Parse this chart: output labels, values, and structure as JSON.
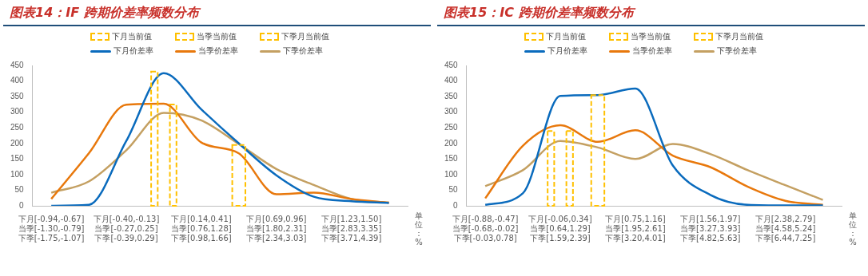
{
  "chart_data": [
    {
      "type": "line",
      "title": "图表14：IF 跨期价差率频数分布",
      "xlabel": "单位：%",
      "legend": "top",
      "grid": false,
      "ylim": [
        0,
        450
      ],
      "yticks": [
        0,
        50,
        100,
        150,
        200,
        250,
        300,
        350,
        400,
        450
      ],
      "categories": [
        "下月[-0.94,-0.67]\n当季[-1.30,-0.79]\n下季[-1.75,-1.07]",
        null,
        "下月[-0.40,-0.13]\n当季[-0.27,0.25]\n下季[-0.39,0.29]",
        null,
        "下月[0.14,0.41]\n当季[0.76,1.28]\n下季[0.98,1.66]",
        null,
        "下月[0.69,0.96]\n当季[1.80,2.31]\n下季[2.34,3.03]",
        null,
        "下月[1.23,1.50]\n当季[2.83,3.35]\n下季[3.71,4.39]",
        null
      ],
      "series": [
        {
          "type": "bar",
          "name": "下月当前值",
          "color": "#ffc000",
          "values": [
            null,
            null,
            null,
            430,
            null,
            null,
            null,
            null,
            null,
            null
          ]
        },
        {
          "type": "bar",
          "name": "当季当前值",
          "color": "#ffc000",
          "values": [
            null,
            null,
            null,
            325,
            null,
            null,
            null,
            null,
            null,
            null
          ]
        },
        {
          "type": "bar",
          "name": "下季月当前值",
          "color": "#ffc000",
          "values": [
            null,
            null,
            null,
            null,
            null,
            195,
            null,
            null,
            null,
            null
          ]
        },
        {
          "type": "line",
          "name": "下月价差率",
          "color": "#0a6bbd",
          "values": [
            0,
            3,
            208,
            425,
            309,
            200,
            98,
            29,
            15,
            9
          ]
        },
        {
          "type": "line",
          "name": "当季价差率",
          "color": "#e8780c",
          "values": [
            22,
            168,
            324,
            327,
            203,
            168,
            37,
            42,
            22,
            10
          ]
        },
        {
          "type": "line",
          "name": "下季价差率",
          "color": "#c4a062",
          "values": [
            42,
            78,
            178,
            298,
            274,
            198,
            118,
            67,
            22,
            10
          ]
        }
      ]
    },
    {
      "type": "line",
      "title": "图表15：IC 跨期价差率频数分布",
      "xlabel": "单位：%",
      "legend": "top",
      "grid": false,
      "ylim": [
        0,
        450
      ],
      "yticks": [
        0,
        50,
        100,
        150,
        200,
        250,
        300,
        350,
        400,
        450
      ],
      "categories": [
        "下月[-0.88,-0.47]\n当季[-0.68,-0.02]\n下季[-0.03,0.78]",
        null,
        "下月[-0.06,0.34]\n当季[0.64,1.29]\n下季[1.59,2.39]",
        null,
        "下月[0.75,1.16]\n当季[1.95,2.61]\n下季[3.20,4.01]",
        null,
        "下月[1.56,1.97]\n当季[3.27,3.93]\n下季[4.82,5.63]",
        null,
        "下月[2.38,2.79]\n当季[4.58,5.24]\n下季[6.44,7.25]",
        null
      ],
      "series": [
        {
          "type": "bar",
          "name": "下月当前值",
          "color": "#ffc000",
          "values": [
            null,
            null,
            null,
            355,
            null,
            null,
            null,
            null,
            null,
            null
          ]
        },
        {
          "type": "bar",
          "name": "当季当前值",
          "color": "#ffc000",
          "values": [
            null,
            null,
            240,
            null,
            null,
            null,
            null,
            null,
            null,
            null
          ]
        },
        {
          "type": "bar",
          "name": "下季月当前值",
          "color": "#ffc000",
          "values": [
            null,
            null,
            240,
            null,
            null,
            null,
            null,
            null,
            null,
            null
          ]
        },
        {
          "type": "line",
          "name": "下月价差率",
          "color": "#0a6bbd",
          "values": [
            3,
            40,
            352,
            355,
            376,
            129,
            35,
            3,
            1,
            1
          ]
        },
        {
          "type": "line",
          "name": "当季价差率",
          "color": "#e8780c",
          "values": [
            24,
            192,
            258,
            205,
            242,
            161,
            124,
            61,
            16,
            3
          ]
        },
        {
          "type": "line",
          "name": "下季价差率",
          "color": "#c4a062",
          "values": [
            63,
            114,
            208,
            187,
            150,
            198,
            166,
            114,
            66,
            19
          ]
        }
      ]
    }
  ]
}
